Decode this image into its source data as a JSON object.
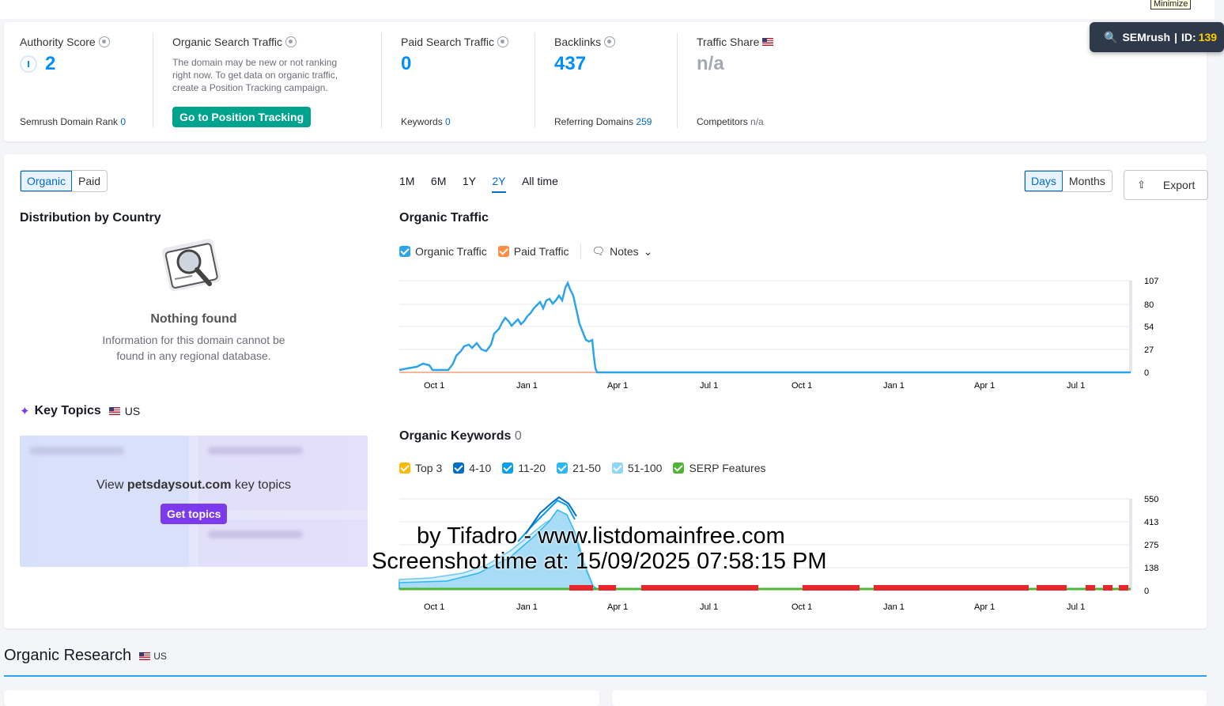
{
  "minimize_label": "Minimize",
  "semrush_badge": {
    "brand": "SEMrush",
    "id_label": "ID:",
    "id_value": "139"
  },
  "overview": {
    "authority": {
      "title": "Authority Score",
      "value": "2",
      "sub_label": "Semrush Domain Rank",
      "sub_value": "0"
    },
    "organic": {
      "title": "Organic Search Traffic",
      "message": "The domain may be new or not ranking right now. To get data on organic traffic, create a Position Tracking campaign.",
      "button": "Go to Position Tracking"
    },
    "paid": {
      "title": "Paid Search Traffic",
      "value": "0",
      "sub_label": "Keywords",
      "sub_value": "0"
    },
    "backlinks": {
      "title": "Backlinks",
      "value": "437",
      "sub_label": "Referring Domains",
      "sub_value": "259"
    },
    "traffic_share": {
      "title": "Traffic Share",
      "value": "n/a",
      "sub_label": "Competitors",
      "sub_value": "n/a"
    }
  },
  "left": {
    "toggle": [
      "Organic",
      "Paid"
    ],
    "distribution_title": "Distribution by Country",
    "nothing_found": "Nothing found",
    "nothing_msg": "Information for this domain cannot be found in any regional database.",
    "key_topics_title": "Key Topics",
    "key_topics_country": "US",
    "view_prefix": "View",
    "view_domain": "petsdaysout.com",
    "view_suffix": "key topics",
    "get_topics": "Get topics"
  },
  "controls": {
    "periods": [
      "1M",
      "6M",
      "1Y",
      "2Y",
      "All time"
    ],
    "granularity": [
      "Days",
      "Months"
    ],
    "export": "Export"
  },
  "traffic_chart": {
    "title": "Organic Traffic",
    "legend": [
      {
        "name": "Organic Traffic",
        "color": "#2ba4ea"
      },
      {
        "name": "Paid Traffic",
        "color": "#ff8c43"
      }
    ],
    "notes": "Notes",
    "y_ticks": [
      "107",
      "80",
      "54",
      "27",
      "0"
    ],
    "x_ticks": [
      "Oct 1",
      "Jan 1",
      "Apr 1",
      "Jul 1",
      "Oct 1",
      "Jan 1",
      "Apr 1",
      "Jul 1"
    ]
  },
  "keywords_chart": {
    "title": "Organic Keywords",
    "count": "0",
    "legend": [
      {
        "name": "Top 3",
        "color": "#ffb800"
      },
      {
        "name": "4-10",
        "color": "#006dca"
      },
      {
        "name": "11-20",
        "color": "#009ff0"
      },
      {
        "name": "21-50",
        "color": "#2bb7f3"
      },
      {
        "name": "51-100",
        "color": "#8dd6f7"
      },
      {
        "name": "SERP Features",
        "color": "#4bb534"
      }
    ],
    "y_ticks": [
      "550",
      "413",
      "275",
      "138",
      "0"
    ],
    "x_ticks": [
      "Oct 1",
      "Jan 1",
      "Apr 1",
      "Jul 1",
      "Oct 1",
      "Jan 1",
      "Apr 1",
      "Jul 1"
    ]
  },
  "watermark": {
    "line1": "by Tifadro - www.listdomainfree.com",
    "line2": "Screenshot time at: 15/09/2025 07:58:15 PM"
  },
  "organic_research": {
    "title": "Organic Research",
    "country": "US"
  }
}
